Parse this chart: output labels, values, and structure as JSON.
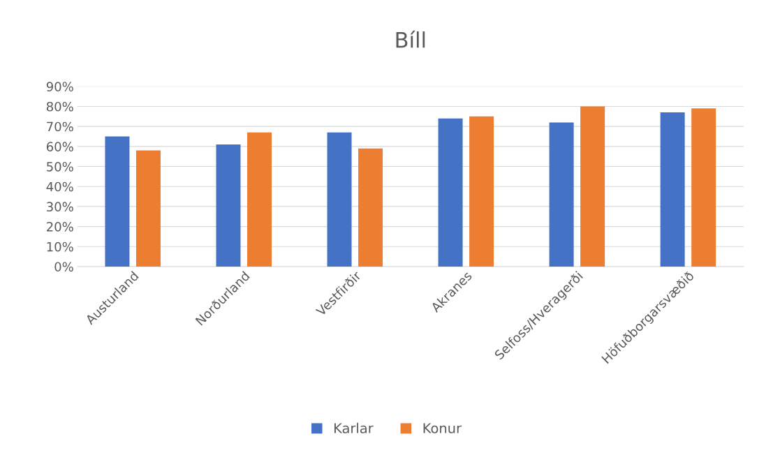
{
  "chart_data": {
    "type": "bar",
    "title": "Bíll",
    "categories": [
      "Austurland",
      "Norðurland",
      "Vestfirðir",
      "Akranes",
      "Selfoss/Hveragerði",
      "Höfuðborgarsvæðið"
    ],
    "series": [
      {
        "name": "Karlar",
        "color": "#4472c4",
        "values": [
          65,
          61,
          67,
          74,
          72,
          77
        ]
      },
      {
        "name": "Konur",
        "color": "#ed7d31",
        "values": [
          58,
          67,
          59,
          75,
          80,
          79
        ]
      }
    ],
    "ylim": [
      0,
      90
    ],
    "yticks": [
      {
        "value": 0,
        "label": "0%"
      },
      {
        "value": 10,
        "label": "10%"
      },
      {
        "value": 20,
        "label": "20%"
      },
      {
        "value": 30,
        "label": "30%"
      },
      {
        "value": 40,
        "label": "40%"
      },
      {
        "value": 50,
        "label": "50%"
      },
      {
        "value": 60,
        "label": "60%"
      },
      {
        "value": 70,
        "label": "70%"
      },
      {
        "value": 80,
        "label": "80%"
      },
      {
        "value": 90,
        "label": "90%"
      }
    ],
    "grid": "y",
    "legend": "bottom"
  }
}
